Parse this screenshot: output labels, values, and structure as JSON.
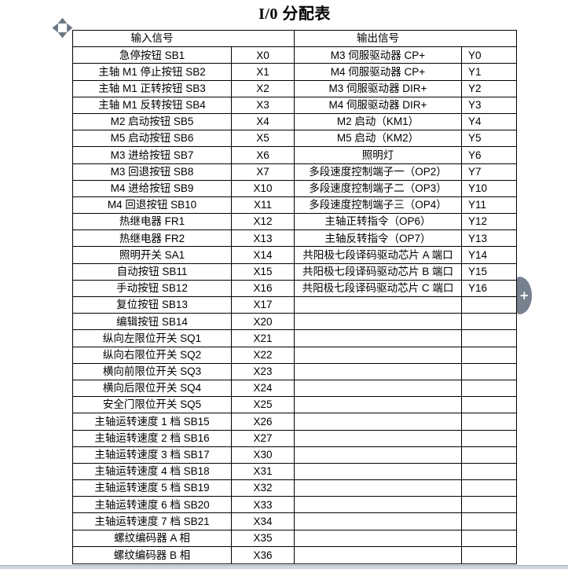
{
  "title": "I/0 分配表",
  "table": {
    "input_header": "输入信号",
    "output_header": "输出信号",
    "rows": [
      {
        "input": "急停按钮 SB1",
        "x": "X0",
        "output": "M3 伺服驱动器 CP+",
        "y": "Y0"
      },
      {
        "input": "主轴 M1 停止按钮 SB2",
        "x": "X1",
        "output": "M4 伺服驱动器 CP+",
        "y": "Y1"
      },
      {
        "input": "主轴 M1 正转按钮 SB3",
        "x": "X2",
        "output": "M3 伺服驱动器 DIR+",
        "y": "Y2"
      },
      {
        "input": "主轴 M1 反转按钮 SB4",
        "x": "X3",
        "output": "M4 伺服驱动器 DIR+",
        "y": "Y3"
      },
      {
        "input": "M2 启动按钮 SB5",
        "x": "X4",
        "output": "M2 启动（KM1）",
        "y": "Y4"
      },
      {
        "input": "M5 启动按钮 SB6",
        "x": "X5",
        "output": "M5 启动（KM2）",
        "y": "Y5"
      },
      {
        "input": "M3 进给按钮 SB7",
        "x": "X6",
        "output": "照明灯",
        "y": "Y6"
      },
      {
        "input": "M3 回退按钮 SB8",
        "x": "X7",
        "output": "多段速度控制端子一（OP2）",
        "y": "Y7"
      },
      {
        "input": "M4 进给按钮 SB9",
        "x": "X10",
        "output": "多段速度控制端子二（OP3）",
        "y": "Y10"
      },
      {
        "input": "M4 回退按钮 SB10",
        "x": "X11",
        "output": "多段速度控制端子三（OP4）",
        "y": "Y11"
      },
      {
        "input": "热继电器 FR1",
        "x": "X12",
        "output": "主轴正转指令（OP6）",
        "y": "Y12"
      },
      {
        "input": "热继电器 FR2",
        "x": "X13",
        "output": "主轴反转指令（OP7）",
        "y": "Y13"
      },
      {
        "input": "照明开关 SA1",
        "x": "X14",
        "output": "共阳极七段译码驱动芯片 A 端口",
        "y": "Y14"
      },
      {
        "input": "自动按钮 SB11",
        "x": "X15",
        "output": "共阳极七段译码驱动芯片 B 端口",
        "y": "Y15"
      },
      {
        "input": "手动按钮 SB12",
        "x": "X16",
        "output": "共阳极七段译码驱动芯片 C 端口",
        "y": "Y16"
      },
      {
        "input": "复位按钮 SB13",
        "x": "X17",
        "output": "",
        "y": ""
      },
      {
        "input": "编辑按钮 SB14",
        "x": "X20",
        "output": "",
        "y": ""
      },
      {
        "input": "纵向左限位开关 SQ1",
        "x": "X21",
        "output": "",
        "y": ""
      },
      {
        "input": "纵向右限位开关 SQ2",
        "x": "X22",
        "output": "",
        "y": ""
      },
      {
        "input": "横向前限位开关 SQ3",
        "x": "X23",
        "output": "",
        "y": ""
      },
      {
        "input": "横向后限位开关 SQ4",
        "x": "X24",
        "output": "",
        "y": ""
      },
      {
        "input": "安全门限位开关 SQ5",
        "x": "X25",
        "output": "",
        "y": ""
      },
      {
        "input": "主轴运转速度 1 档 SB15",
        "x": "X26",
        "output": "",
        "y": ""
      },
      {
        "input": "主轴运转速度 2 档 SB16",
        "x": "X27",
        "output": "",
        "y": ""
      },
      {
        "input": "主轴运转速度 3 档 SB17",
        "x": "X30",
        "output": "",
        "y": ""
      },
      {
        "input": "主轴运转速度 4 档 SB18",
        "x": "X31",
        "output": "",
        "y": ""
      },
      {
        "input": "主轴运转速度 5 档 SB19",
        "x": "X32",
        "output": "",
        "y": ""
      },
      {
        "input": "主轴运转速度 6 档 SB20",
        "x": "X33",
        "output": "",
        "y": ""
      },
      {
        "input": "主轴运转速度 7 档 SB21",
        "x": "X34",
        "output": "",
        "y": ""
      },
      {
        "input": "螺纹编码器 A 相",
        "x": "X35",
        "output": "",
        "y": ""
      },
      {
        "input": "螺纹编码器 B 相",
        "x": "X36",
        "output": "",
        "y": ""
      }
    ]
  },
  "widgets": {
    "plus_handle": "+"
  },
  "colors": {
    "border": "#000000",
    "handle_gray": "#77828f",
    "arrow_gray": "#6b7683",
    "bottom_strip": "#cbd5e2"
  }
}
